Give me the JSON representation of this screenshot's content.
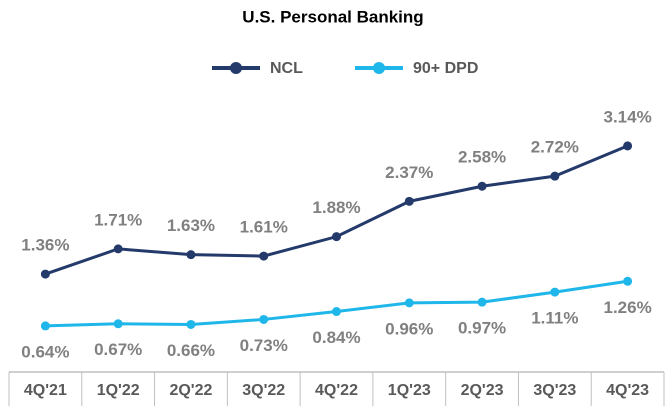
{
  "chart_data": {
    "type": "line",
    "title": "U.S. Personal Banking",
    "categories": [
      "4Q'21",
      "1Q'22",
      "2Q'22",
      "3Q'22",
      "4Q'22",
      "1Q'23",
      "2Q'23",
      "3Q'23",
      "4Q'23"
    ],
    "series": [
      {
        "name": "NCL",
        "color": "#233a6a",
        "values": [
          1.36,
          1.71,
          1.63,
          1.61,
          1.88,
          2.37,
          2.58,
          2.72,
          3.14
        ],
        "value_labels": [
          "1.36%",
          "1.71%",
          "1.63%",
          "1.61%",
          "1.88%",
          "2.37%",
          "2.58%",
          "2.72%",
          "3.14%"
        ]
      },
      {
        "name": "90+ DPD",
        "color": "#1fb7ea",
        "values": [
          0.64,
          0.67,
          0.66,
          0.73,
          0.84,
          0.96,
          0.97,
          1.11,
          1.26
        ],
        "value_labels": [
          "0.64%",
          "0.67%",
          "0.66%",
          "0.73%",
          "0.84%",
          "0.96%",
          "0.97%",
          "1.11%",
          "1.26%"
        ]
      }
    ],
    "ylim": [
      0,
      4
    ],
    "legend": "top"
  }
}
